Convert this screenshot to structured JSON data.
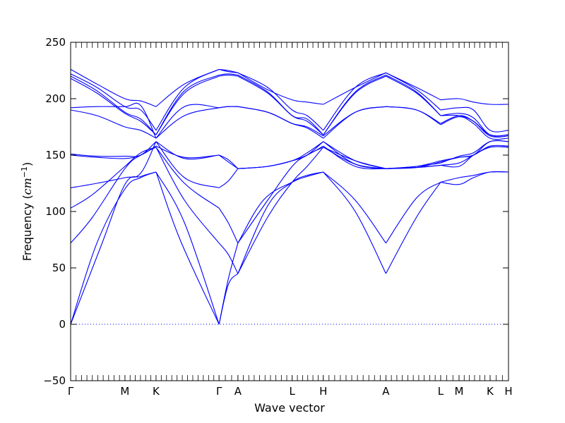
{
  "chart_data": {
    "type": "line",
    "title": "",
    "xlabel": "Wave vector",
    "ylabel_text": "Frequency (",
    "ylabel_unit": "cm",
    "ylabel_exp": "−1",
    "ylabel_close": ")",
    "ylim": [
      -50,
      250
    ],
    "yticks": [
      -50,
      0,
      50,
      100,
      150,
      200,
      250
    ],
    "ytick_labels": [
      "−50",
      "0",
      "50",
      "100",
      "150",
      "200",
      "250"
    ],
    "xlim": [
      0,
      1
    ],
    "xticks": [
      {
        "label": "Γ",
        "pos": 0.0
      },
      {
        "label": "M",
        "pos": 0.124
      },
      {
        "label": "K",
        "pos": 0.195
      },
      {
        "label": "Γ",
        "pos": 0.339
      },
      {
        "label": "A",
        "pos": 0.382
      },
      {
        "label": "L",
        "pos": 0.506
      },
      {
        "label": "H",
        "pos": 0.577
      },
      {
        "label": "A",
        "pos": 0.72
      },
      {
        "label": "L",
        "pos": 0.845
      },
      {
        "label": "M",
        "pos": 0.887
      },
      {
        "label": "K",
        "pos": 0.958
      },
      {
        "label": "H",
        "pos": 1.0
      }
    ],
    "zero_line": true,
    "grid": false,
    "line_color": "#0000ff",
    "series": [
      {
        "x": [
          0,
          0.06,
          0.124,
          0.16,
          0.195
        ],
        "y": [
          0,
          72,
          120,
          130,
          135
        ]
      },
      {
        "x": [
          0.195,
          0.25,
          0.339
        ],
        "y": [
          135,
          75,
          0
        ]
      },
      {
        "x": [
          0.339,
          0.36,
          0.382
        ],
        "y": [
          0,
          40,
          72
        ]
      },
      {
        "x": [
          0.382,
          0.44,
          0.506,
          0.54,
          0.577
        ],
        "y": [
          72,
          110,
          126,
          131,
          135
        ]
      },
      {
        "x": [
          0.577,
          0.65,
          0.72
        ],
        "y": [
          135,
          100,
          45
        ]
      },
      {
        "x": [
          0.72,
          0.79,
          0.845
        ],
        "y": [
          45,
          95,
          126
        ]
      },
      {
        "x": [
          0.845,
          0.887,
          0.92,
          0.958,
          1.0
        ],
        "y": [
          126,
          124,
          130,
          135,
          135
        ]
      },
      {
        "x": [
          0,
          0.07,
          0.124,
          0.16,
          0.195
        ],
        "y": [
          0,
          70,
          124,
          131,
          135
        ]
      },
      {
        "x": [
          0.195,
          0.26,
          0.339
        ],
        "y": [
          135,
          90,
          0
        ]
      },
      {
        "x": [
          0.339,
          0.36,
          0.382
        ],
        "y": [
          0,
          35,
          45
        ]
      },
      {
        "x": [
          0.382,
          0.45,
          0.506,
          0.54,
          0.577
        ],
        "y": [
          45,
          105,
          126,
          132,
          135
        ]
      },
      {
        "x": [
          0.577,
          0.65,
          0.72
        ],
        "y": [
          135,
          110,
          72
        ]
      },
      {
        "x": [
          0.72,
          0.79,
          0.845
        ],
        "y": [
          72,
          112,
          126
        ]
      },
      {
        "x": [
          0.845,
          0.887,
          0.92,
          0.958,
          1.0
        ],
        "y": [
          126,
          130,
          132,
          135,
          135
        ]
      },
      {
        "x": [
          0,
          0.05,
          0.124,
          0.16,
          0.195
        ],
        "y": [
          72,
          95,
          138,
          150,
          157
        ]
      },
      {
        "x": [
          0.195,
          0.26,
          0.339
        ],
        "y": [
          157,
          110,
          72
        ]
      },
      {
        "x": [
          0.339,
          0.36,
          0.382
        ],
        "y": [
          72,
          62,
          45
        ]
      },
      {
        "x": [
          0.382,
          0.45,
          0.506,
          0.54,
          0.577
        ],
        "y": [
          45,
          95,
          126,
          140,
          157
        ]
      },
      {
        "x": [
          0.577,
          0.65,
          0.72
        ],
        "y": [
          157,
          145,
          138
        ]
      },
      {
        "x": [
          0.72,
          0.79,
          0.845
        ],
        "y": [
          138,
          139,
          141
        ]
      },
      {
        "x": [
          0.845,
          0.887,
          0.92,
          0.958,
          1.0
        ],
        "y": [
          141,
          143,
          150,
          157,
          157
        ]
      },
      {
        "x": [
          0,
          0.05,
          0.124,
          0.16,
          0.195
        ],
        "y": [
          103,
          115,
          140,
          152,
          157
        ]
      },
      {
        "x": [
          0.195,
          0.26,
          0.339
        ],
        "y": [
          157,
          125,
          103
        ]
      },
      {
        "x": [
          0.339,
          0.36,
          0.382
        ],
        "y": [
          103,
          90,
          72
        ]
      },
      {
        "x": [
          0.382,
          0.45,
          0.506,
          0.54,
          0.577
        ],
        "y": [
          72,
          110,
          140,
          150,
          157
        ]
      },
      {
        "x": [
          0.577,
          0.65,
          0.72
        ],
        "y": [
          157,
          142,
          138
        ]
      },
      {
        "x": [
          0.72,
          0.79,
          0.845
        ],
        "y": [
          138,
          139,
          141
        ]
      },
      {
        "x": [
          0.845,
          0.887,
          0.92,
          0.958,
          1.0
        ],
        "y": [
          141,
          140,
          150,
          157,
          157
        ]
      },
      {
        "x": [
          0,
          0.06,
          0.124,
          0.16,
          0.195
        ],
        "y": [
          121,
          125,
          130,
          134,
          162
        ]
      },
      {
        "x": [
          0.195,
          0.26,
          0.339
        ],
        "y": [
          162,
          130,
          121
        ]
      },
      {
        "x": [
          0.339,
          0.36,
          0.382
        ],
        "y": [
          121,
          127,
          138
        ]
      },
      {
        "x": [
          0.382,
          0.45,
          0.506,
          0.54,
          0.577
        ],
        "y": [
          138,
          140,
          145,
          152,
          162
        ]
      },
      {
        "x": [
          0.577,
          0.65,
          0.72
        ],
        "y": [
          162,
          142,
          138
        ]
      },
      {
        "x": [
          0.72,
          0.79,
          0.845
        ],
        "y": [
          138,
          139,
          144
        ]
      },
      {
        "x": [
          0.845,
          0.887,
          0.92,
          0.958,
          1.0
        ],
        "y": [
          144,
          148,
          150,
          162,
          162
        ]
      },
      {
        "x": [
          0,
          0.06,
          0.124,
          0.16,
          0.195
        ],
        "y": [
          150,
          148,
          147,
          150,
          158
        ]
      },
      {
        "x": [
          0.195,
          0.26,
          0.339
        ],
        "y": [
          158,
          148,
          150
        ]
      },
      {
        "x": [
          0.339,
          0.36,
          0.382
        ],
        "y": [
          150,
          144,
          138
        ]
      },
      {
        "x": [
          0.382,
          0.45,
          0.506,
          0.54,
          0.577
        ],
        "y": [
          138,
          140,
          145,
          150,
          158
        ]
      },
      {
        "x": [
          0.577,
          0.65,
          0.72
        ],
        "y": [
          158,
          140,
          138
        ]
      },
      {
        "x": [
          0.72,
          0.79,
          0.845
        ],
        "y": [
          138,
          140,
          145
        ]
      },
      {
        "x": [
          0.845,
          0.887,
          0.92,
          0.958,
          1.0
        ],
        "y": [
          145,
          148,
          150,
          158,
          158
        ]
      },
      {
        "x": [
          0,
          0.06,
          0.124,
          0.16,
          0.195
        ],
        "y": [
          151,
          149,
          149,
          150,
          162
        ]
      },
      {
        "x": [
          0.195,
          0.26,
          0.339
        ],
        "y": [
          162,
          147,
          150
        ]
      },
      {
        "x": [
          0.339,
          0.36,
          0.382
        ],
        "y": [
          150,
          146,
          138
        ]
      },
      {
        "x": [
          0.382,
          0.45,
          0.506,
          0.54,
          0.577
        ],
        "y": [
          138,
          140,
          145,
          150,
          162
        ]
      },
      {
        "x": [
          0.577,
          0.65,
          0.72
        ],
        "y": [
          162,
          145,
          138
        ]
      },
      {
        "x": [
          0.72,
          0.79,
          0.845
        ],
        "y": [
          138,
          140,
          143
        ]
      },
      {
        "x": [
          0.845,
          0.887,
          0.92,
          0.958,
          1.0
        ],
        "y": [
          143,
          149,
          152,
          162,
          162
        ]
      },
      {
        "x": [
          0,
          0.06,
          0.124,
          0.16,
          0.195
        ],
        "y": [
          190,
          185,
          175,
          172,
          165
        ]
      },
      {
        "x": [
          0.195,
          0.26,
          0.339
        ],
        "y": [
          165,
          185,
          192
        ]
      },
      {
        "x": [
          0.339,
          0.36,
          0.382
        ],
        "y": [
          192,
          193,
          193
        ]
      },
      {
        "x": [
          0.382,
          0.45,
          0.506,
          0.54,
          0.577
        ],
        "y": [
          193,
          188,
          178,
          174,
          165
        ]
      },
      {
        "x": [
          0.577,
          0.65,
          0.72
        ],
        "y": [
          165,
          188,
          193
        ]
      },
      {
        "x": [
          0.72,
          0.79,
          0.845
        ],
        "y": [
          193,
          190,
          177
        ]
      },
      {
        "x": [
          0.845,
          0.887,
          0.92,
          0.958,
          1.0
        ],
        "y": [
          177,
          184,
          178,
          165,
          165
        ]
      },
      {
        "x": [
          0,
          0.06,
          0.124,
          0.16,
          0.195
        ],
        "y": [
          192,
          193,
          193,
          194,
          165
        ]
      },
      {
        "x": [
          0.195,
          0.26,
          0.339
        ],
        "y": [
          165,
          193,
          192
        ]
      },
      {
        "x": [
          0.339,
          0.36,
          0.382
        ],
        "y": [
          192,
          193,
          193
        ]
      },
      {
        "x": [
          0.382,
          0.45,
          0.506,
          0.54,
          0.577
        ],
        "y": [
          193,
          188,
          178,
          175,
          167
        ]
      },
      {
        "x": [
          0.577,
          0.65,
          0.72
        ],
        "y": [
          167,
          188,
          193
        ]
      },
      {
        "x": [
          0.72,
          0.79,
          0.845
        ],
        "y": [
          193,
          190,
          178
        ]
      },
      {
        "x": [
          0.845,
          0.887,
          0.92,
          0.958,
          1.0
        ],
        "y": [
          178,
          185,
          180,
          167,
          167
        ]
      },
      {
        "x": [
          0,
          0.06,
          0.124,
          0.16,
          0.195
        ],
        "y": [
          218,
          205,
          187,
          180,
          168
        ]
      },
      {
        "x": [
          0.195,
          0.26,
          0.339
        ],
        "y": [
          168,
          205,
          220
        ]
      },
      {
        "x": [
          0.339,
          0.36,
          0.382
        ],
        "y": [
          220,
          221,
          220
        ]
      },
      {
        "x": [
          0.382,
          0.45,
          0.506,
          0.54,
          0.577
        ],
        "y": [
          220,
          205,
          185,
          180,
          168
        ]
      },
      {
        "x": [
          0.577,
          0.65,
          0.72
        ],
        "y": [
          168,
          205,
          220
        ]
      },
      {
        "x": [
          0.72,
          0.79,
          0.845
        ],
        "y": [
          220,
          205,
          185
        ]
      },
      {
        "x": [
          0.845,
          0.887,
          0.92,
          0.958,
          1.0
        ],
        "y": [
          185,
          185,
          180,
          168,
          168
        ]
      },
      {
        "x": [
          0,
          0.06,
          0.124,
          0.16,
          0.195
        ],
        "y": [
          220,
          207,
          188,
          182,
          168
        ]
      },
      {
        "x": [
          0.195,
          0.26,
          0.339
        ],
        "y": [
          168,
          207,
          221
        ]
      },
      {
        "x": [
          0.339,
          0.36,
          0.382
        ],
        "y": [
          221,
          222,
          221
        ]
      },
      {
        "x": [
          0.382,
          0.45,
          0.506,
          0.54,
          0.577
        ],
        "y": [
          221,
          206,
          185,
          182,
          168
        ]
      },
      {
        "x": [
          0.577,
          0.65,
          0.72
        ],
        "y": [
          168,
          206,
          221
        ]
      },
      {
        "x": [
          0.72,
          0.79,
          0.845
        ],
        "y": [
          221,
          206,
          185
        ]
      },
      {
        "x": [
          0.845,
          0.887,
          0.92,
          0.958,
          1.0
        ],
        "y": [
          185,
          187,
          183,
          168,
          168
        ]
      },
      {
        "x": [
          0,
          0.06,
          0.124,
          0.16,
          0.195
        ],
        "y": [
          222,
          210,
          193,
          190,
          172
        ]
      },
      {
        "x": [
          0.195,
          0.26,
          0.339
        ],
        "y": [
          172,
          210,
          226
        ]
      },
      {
        "x": [
          0.339,
          0.36,
          0.382
        ],
        "y": [
          226,
          225,
          223
        ]
      },
      {
        "x": [
          0.382,
          0.45,
          0.506,
          0.54,
          0.577
        ],
        "y": [
          223,
          210,
          190,
          185,
          172
        ]
      },
      {
        "x": [
          0.577,
          0.65,
          0.72
        ],
        "y": [
          172,
          210,
          223
        ]
      },
      {
        "x": [
          0.72,
          0.79,
          0.845
        ],
        "y": [
          223,
          208,
          190
        ]
      },
      {
        "x": [
          0.845,
          0.887,
          0.92,
          0.958,
          1.0
        ],
        "y": [
          190,
          192,
          190,
          172,
          172
        ]
      },
      {
        "x": [
          0,
          0.06,
          0.124,
          0.16,
          0.195
        ],
        "y": [
          226,
          213,
          200,
          198,
          193
        ]
      },
      {
        "x": [
          0.195,
          0.26,
          0.339
        ],
        "y": [
          193,
          213,
          226
        ]
      },
      {
        "x": [
          0.339,
          0.36,
          0.382
        ],
        "y": [
          226,
          224,
          223
        ]
      },
      {
        "x": [
          0.382,
          0.45,
          0.506,
          0.54,
          0.577
        ],
        "y": [
          223,
          208,
          199,
          197,
          195
        ]
      },
      {
        "x": [
          0.577,
          0.65,
          0.72
        ],
        "y": [
          195,
          210,
          223
        ]
      },
      {
        "x": [
          0.72,
          0.79,
          0.845
        ],
        "y": [
          223,
          210,
          199
        ]
      },
      {
        "x": [
          0.845,
          0.887,
          0.92,
          0.958,
          1.0
        ],
        "y": [
          199,
          200,
          197,
          195,
          195
        ]
      }
    ]
  }
}
